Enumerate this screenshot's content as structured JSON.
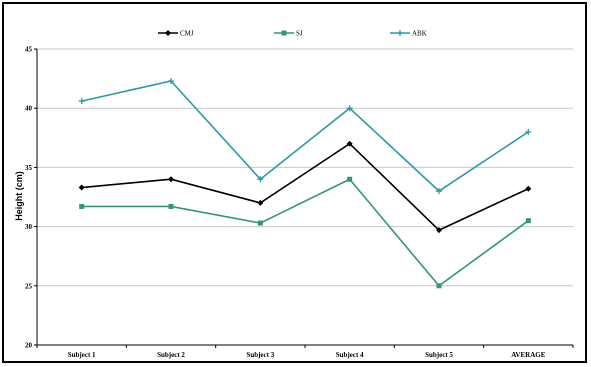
{
  "chart_data": {
    "type": "line",
    "title": "",
    "xlabel": "",
    "ylabel": "Height (cm)",
    "ylim": [
      20,
      45
    ],
    "yticks": [
      20,
      25,
      30,
      35,
      40,
      45
    ],
    "grid": true,
    "legend_position": "top",
    "categories": [
      "Subject 1",
      "Subject 2",
      "Subject 3",
      "Subject 4",
      "Subject 5",
      "AVERAGE"
    ],
    "series": [
      {
        "name": "CMJ",
        "color": "#000000",
        "marker": "diamond",
        "values": [
          33.3,
          34.0,
          32.0,
          37.0,
          29.7,
          33.2
        ]
      },
      {
        "name": "SJ",
        "color": "#2e9a6e",
        "marker": "square",
        "values": [
          31.7,
          31.7,
          30.3,
          34.0,
          25.0,
          30.5
        ]
      },
      {
        "name": "ABK",
        "color": "#2a9aa6",
        "marker": "plus",
        "values": [
          40.6,
          42.3,
          34.0,
          40.0,
          33.0,
          38.0
        ]
      }
    ]
  }
}
